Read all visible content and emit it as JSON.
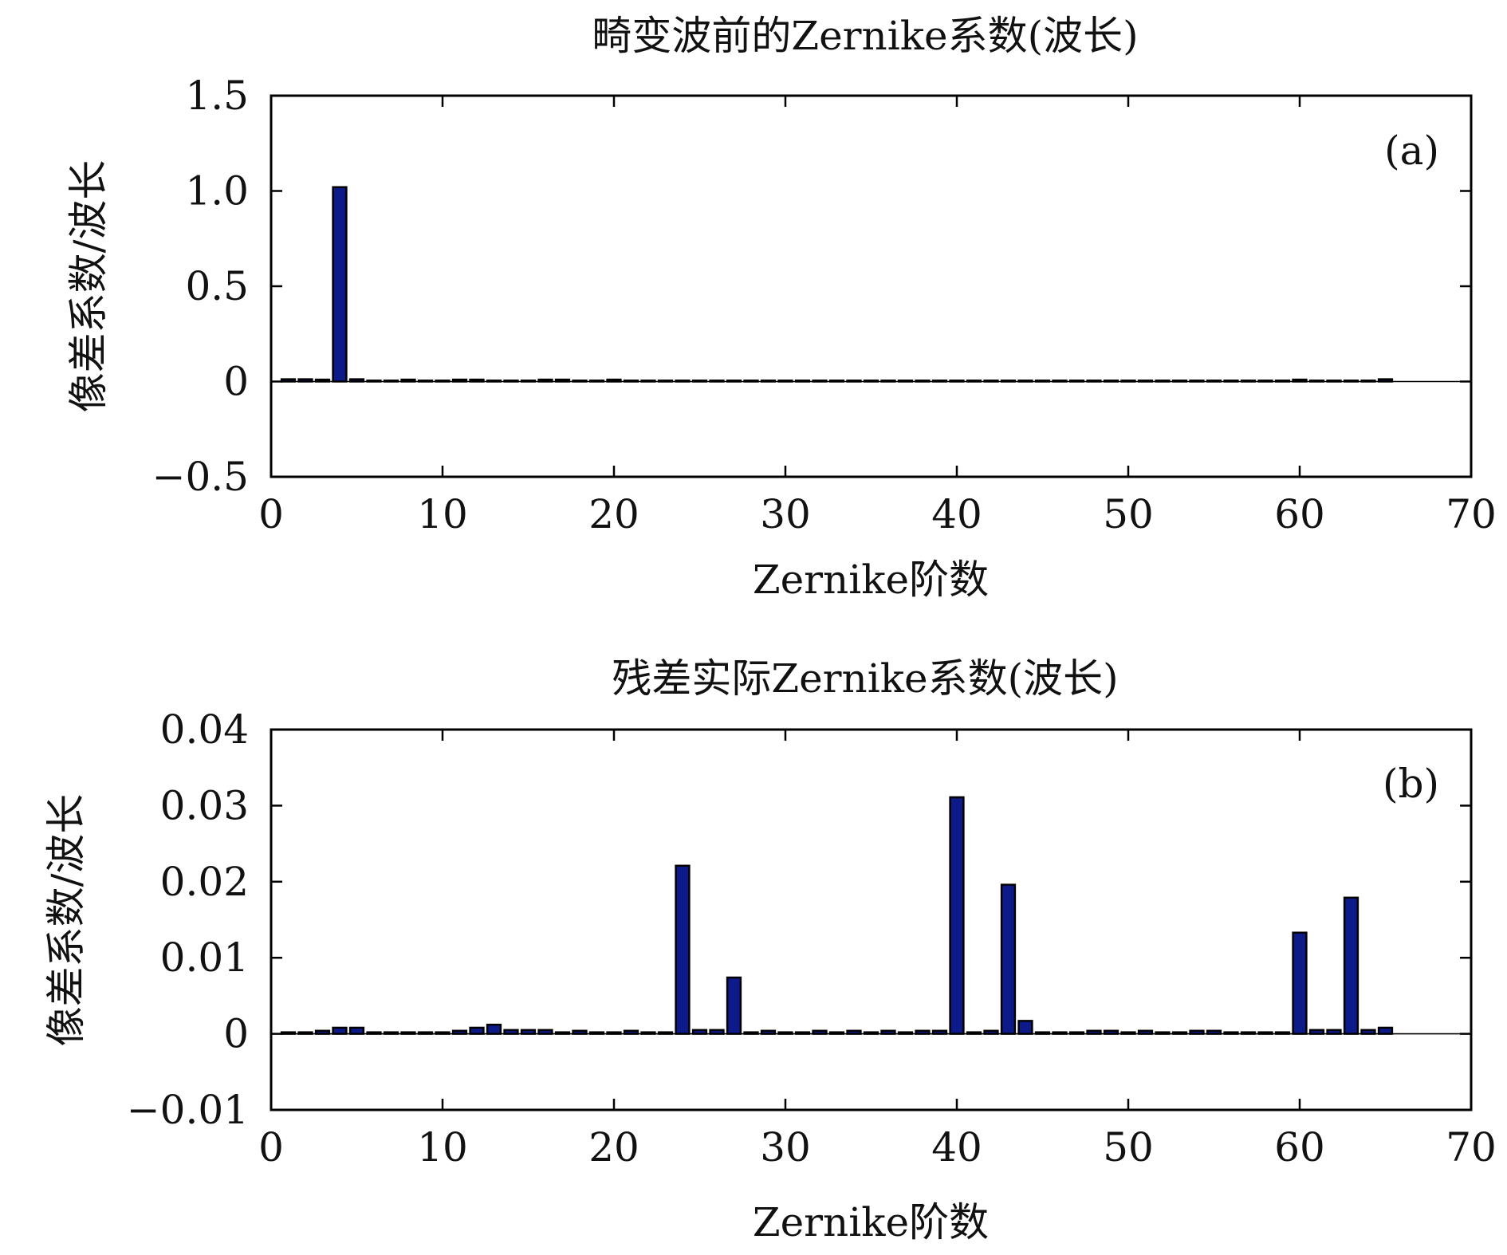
{
  "chart_data": [
    {
      "type": "bar",
      "title": "畸变波前的Zernike系数(波长)",
      "xlabel": "Zernike阶数",
      "ylabel": "像差系数/波长",
      "panel_label": "(a)",
      "xlim": [
        0,
        70
      ],
      "ylim": [
        -0.5,
        1.5
      ],
      "xticks": [
        "0",
        "10",
        "20",
        "30",
        "40",
        "50",
        "60",
        "70"
      ],
      "yticks": [
        "−0.5",
        "0",
        "0.5",
        "1.0",
        "1.5"
      ],
      "ytick_values": [
        -0.5,
        0,
        0.5,
        1.0,
        1.5
      ],
      "bar_color": "#0d1a8a",
      "x": [
        1,
        2,
        3,
        4,
        5,
        6,
        7,
        8,
        9,
        10,
        11,
        12,
        13,
        14,
        15,
        16,
        17,
        18,
        19,
        20,
        21,
        22,
        23,
        24,
        25,
        26,
        27,
        28,
        29,
        30,
        31,
        32,
        33,
        34,
        35,
        36,
        37,
        38,
        39,
        40,
        41,
        42,
        43,
        44,
        45,
        46,
        47,
        48,
        49,
        50,
        51,
        52,
        53,
        54,
        55,
        56,
        57,
        58,
        59,
        60,
        61,
        62,
        63,
        64,
        65
      ],
      "values": [
        0.012,
        0.012,
        0.01,
        1.02,
        0.012,
        0.005,
        0.005,
        0.01,
        0.005,
        0.005,
        0.01,
        0.01,
        0.005,
        0.005,
        0.005,
        0.01,
        0.01,
        0.005,
        0.005,
        0.01,
        0.005,
        0.005,
        0.005,
        0.005,
        0.005,
        0.005,
        0.005,
        0.005,
        0.005,
        0.005,
        0.005,
        0.005,
        0.005,
        0.005,
        0.005,
        0.005,
        0.005,
        0.005,
        0.005,
        0.005,
        0.005,
        0.005,
        0.005,
        0.005,
        0.005,
        0.005,
        0.005,
        0.005,
        0.005,
        0.005,
        0.005,
        0.005,
        0.005,
        0.005,
        0.005,
        0.005,
        0.005,
        0.005,
        0.005,
        0.01,
        0.005,
        0.005,
        0.005,
        0.005,
        0.012
      ]
    },
    {
      "type": "bar",
      "title": "残差实际Zernike系数(波长)",
      "xlabel": "Zernike阶数",
      "ylabel": "像差系数/波长",
      "panel_label": "(b)",
      "xlim": [
        0,
        70
      ],
      "ylim": [
        -0.01,
        0.04
      ],
      "xticks": [
        "0",
        "10",
        "20",
        "30",
        "40",
        "50",
        "60",
        "70"
      ],
      "yticks": [
        "−0.01",
        "0",
        "0.01",
        "0.02",
        "0.03",
        "0.04"
      ],
      "ytick_values": [
        -0.01,
        0,
        0.01,
        0.02,
        0.03,
        0.04
      ],
      "bar_color": "#0d1a8a",
      "x": [
        1,
        2,
        3,
        4,
        5,
        6,
        7,
        8,
        9,
        10,
        11,
        12,
        13,
        14,
        15,
        16,
        17,
        18,
        19,
        20,
        21,
        22,
        23,
        24,
        25,
        26,
        27,
        28,
        29,
        30,
        31,
        32,
        33,
        34,
        35,
        36,
        37,
        38,
        39,
        40,
        41,
        42,
        43,
        44,
        45,
        46,
        47,
        48,
        49,
        50,
        51,
        52,
        53,
        54,
        55,
        56,
        57,
        58,
        59,
        60,
        61,
        62,
        63,
        64,
        65
      ],
      "values": [
        0.0002,
        0.0002,
        0.0004,
        0.0008,
        0.0008,
        0.0002,
        0.0002,
        0.0002,
        0.0002,
        0.0002,
        0.0004,
        0.0008,
        0.0012,
        0.0005,
        0.0005,
        0.0005,
        0.0002,
        0.0004,
        0.0002,
        0.0002,
        0.0004,
        0.0002,
        0.0002,
        0.0221,
        0.0005,
        0.0005,
        0.0074,
        0.0002,
        0.0004,
        0.0002,
        0.0002,
        0.0004,
        0.0002,
        0.0004,
        0.0002,
        0.0004,
        0.0002,
        0.0004,
        0.0004,
        0.0311,
        0.0002,
        0.0004,
        0.0196,
        0.0017,
        0.0002,
        0.0002,
        0.0002,
        0.0004,
        0.0004,
        0.0002,
        0.0004,
        0.0002,
        0.0002,
        0.0004,
        0.0004,
        0.0002,
        0.0002,
        0.0002,
        0.0002,
        0.0133,
        0.0005,
        0.0005,
        0.0179,
        0.0005,
        0.0008
      ]
    }
  ]
}
